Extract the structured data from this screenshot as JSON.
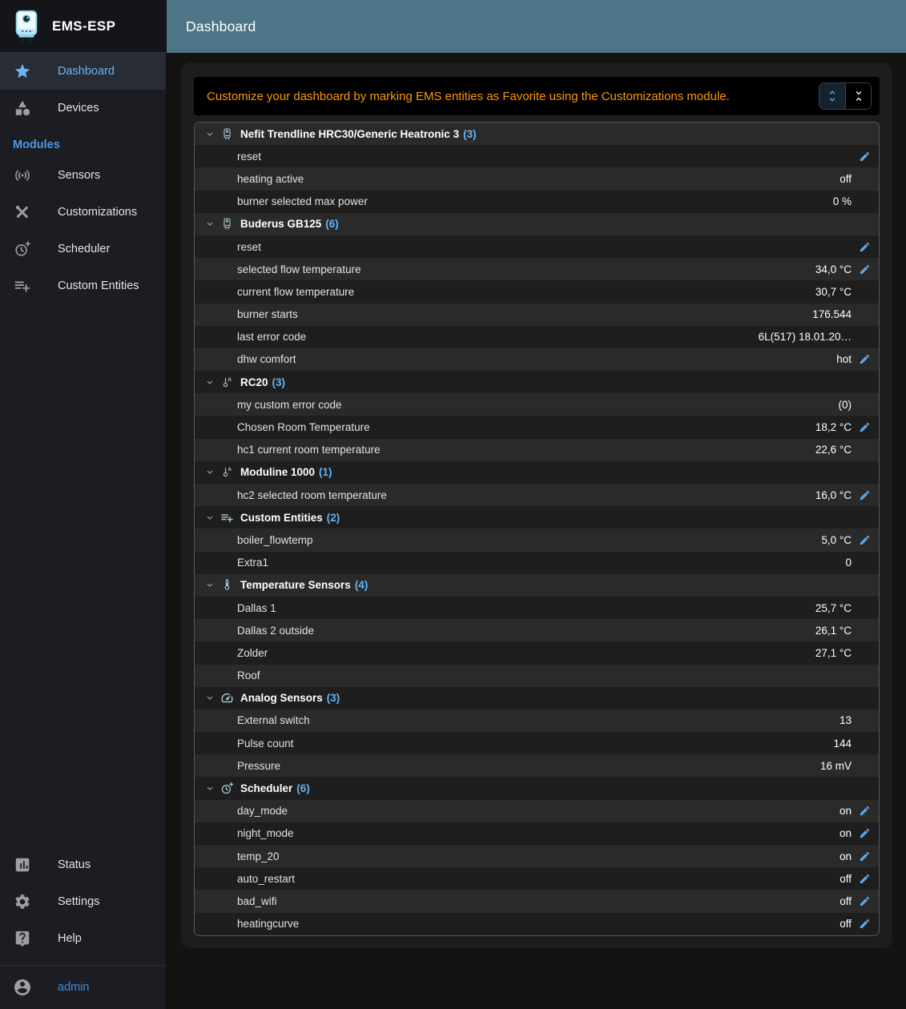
{
  "app": {
    "title": "EMS-ESP"
  },
  "header": {
    "title": "Dashboard"
  },
  "colors": {
    "appbar_teal": "#4e7587",
    "accent_blue": "#64b5f6",
    "link_blue": "#3d8de2",
    "notice_orange": "#ff9800",
    "row_light": "#2a2a2a",
    "row_dark": "#1e1e1e",
    "panel": "#1d1d1d",
    "sidebar": "#1b1d23"
  },
  "sidebar": {
    "main_items": [
      {
        "label": "Dashboard",
        "icon": "star-icon",
        "active": true
      },
      {
        "label": "Devices",
        "icon": "category-icon",
        "active": false
      }
    ],
    "modules_label": "Modules",
    "module_items": [
      {
        "label": "Sensors",
        "icon": "antenna-icon"
      },
      {
        "label": "Customizations",
        "icon": "tools-icon"
      },
      {
        "label": "Scheduler",
        "icon": "clock-plus-icon"
      },
      {
        "label": "Custom Entities",
        "icon": "playlist-add-icon"
      }
    ],
    "bottom_items": [
      {
        "label": "Status",
        "icon": "bar-chart-icon"
      },
      {
        "label": "Settings",
        "icon": "gear-icon"
      },
      {
        "label": "Help",
        "icon": "help-icon"
      }
    ],
    "user": {
      "label": "admin",
      "icon": "account-icon"
    }
  },
  "notice": {
    "text": "Customize your dashboard by marking EMS entities as Favorite using the Customizations module.",
    "buttons": [
      {
        "name": "expand-all-button",
        "icon": "unfold-more-icon",
        "selected": true
      },
      {
        "name": "collapse-all-button",
        "icon": "unfold-less-icon",
        "selected": false
      }
    ]
  },
  "dashboard": {
    "groups": [
      {
        "name": "Nefit Trendline HRC30/Generic Heatronic 3",
        "count": "(3)",
        "icon": "boiler-icon",
        "items": [
          {
            "label": "reset",
            "value": "",
            "editable": true
          },
          {
            "label": "heating active",
            "value": "off",
            "editable": false
          },
          {
            "label": "burner selected max power",
            "value": "0 %",
            "editable": false
          }
        ]
      },
      {
        "name": "Buderus GB125",
        "count": "(6)",
        "icon": "boiler-icon",
        "items": [
          {
            "label": "reset",
            "value": "",
            "editable": true
          },
          {
            "label": "selected flow temperature",
            "value": "34,0 °C",
            "editable": true
          },
          {
            "label": "current flow temperature",
            "value": "30,7 °C",
            "editable": false
          },
          {
            "label": "burner starts",
            "value": "176.544",
            "editable": false
          },
          {
            "label": "last error code",
            "value": "6L(517) 18.01.20…",
            "editable": false
          },
          {
            "label": "dhw comfort",
            "value": "hot",
            "editable": true
          }
        ]
      },
      {
        "name": "RC20",
        "count": "(3)",
        "icon": "thermostat-icon",
        "items": [
          {
            "label": "my custom error code",
            "value": "(0)",
            "editable": false
          },
          {
            "label": "Chosen Room Temperature",
            "value": "18,2 °C",
            "editable": true
          },
          {
            "label": "hc1 current room temperature",
            "value": "22,6 °C",
            "editable": false
          }
        ]
      },
      {
        "name": "Moduline 1000",
        "count": "(1)",
        "icon": "thermostat-icon",
        "items": [
          {
            "label": "hc2 selected room temperature",
            "value": "16,0 °C",
            "editable": true
          }
        ]
      },
      {
        "name": "Custom Entities",
        "count": "(2)",
        "icon": "playlist-add-icon",
        "items": [
          {
            "label": "boiler_flowtemp",
            "value": "5,0 °C",
            "editable": true
          },
          {
            "label": "Extra1",
            "value": "0",
            "editable": false
          }
        ]
      },
      {
        "name": "Temperature Sensors",
        "count": "(4)",
        "icon": "thermometer-icon",
        "items": [
          {
            "label": "Dallas 1",
            "value": "25,7 °C",
            "editable": false
          },
          {
            "label": "Dallas 2 outside",
            "value": "26,1 °C",
            "editable": false
          },
          {
            "label": "Zolder",
            "value": "27,1 °C",
            "editable": false
          },
          {
            "label": "Roof",
            "value": "",
            "editable": false
          }
        ]
      },
      {
        "name": "Analog Sensors",
        "count": "(3)",
        "icon": "gauge-icon",
        "items": [
          {
            "label": "External switch",
            "value": "13",
            "editable": false
          },
          {
            "label": "Pulse count",
            "value": "144",
            "editable": false
          },
          {
            "label": "Pressure",
            "value": "16 mV",
            "editable": false
          }
        ]
      },
      {
        "name": "Scheduler",
        "count": "(6)",
        "icon": "clock-plus-icon",
        "items": [
          {
            "label": "day_mode",
            "value": "on",
            "editable": true
          },
          {
            "label": "night_mode",
            "value": "on",
            "editable": true
          },
          {
            "label": "temp_20",
            "value": "on",
            "editable": true
          },
          {
            "label": "auto_restart",
            "value": "off",
            "editable": true
          },
          {
            "label": "bad_wifi",
            "value": "off",
            "editable": true
          },
          {
            "label": "heatingcurve",
            "value": "off",
            "editable": true
          }
        ]
      }
    ]
  }
}
